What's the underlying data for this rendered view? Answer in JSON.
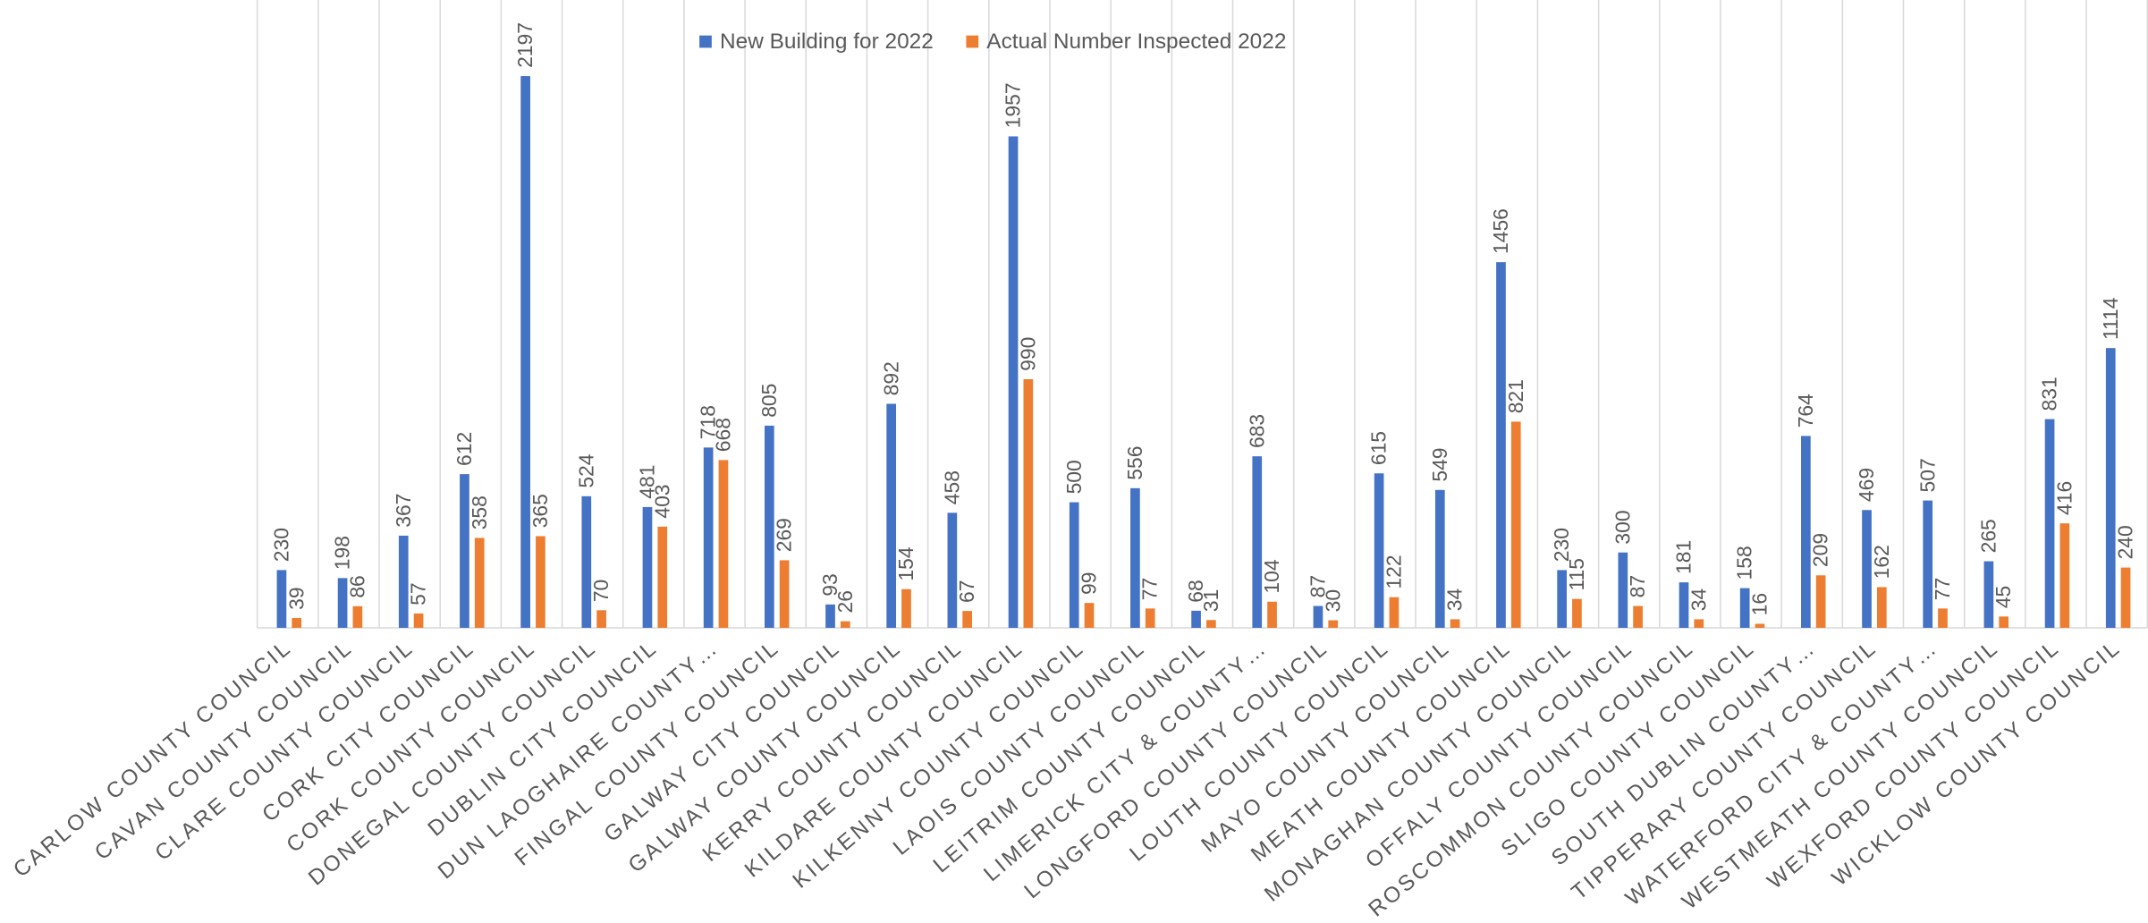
{
  "chart_data": {
    "type": "bar",
    "categories": [
      "CARLOW COUNTY COUNCIL",
      "CAVAN COUNTY COUNCIL",
      "CLARE COUNTY COUNCIL",
      "CORK CITY COUNCIL",
      "CORK COUNTY COUNCIL",
      "DONEGAL COUNTY COUNCIL",
      "DUBLIN CITY COUNCIL",
      "DUN LAOGHAIRE COUNTY…",
      "FINGAL COUNTY COUNCIL",
      "GALWAY CITY COUNCIL",
      "GALWAY COUNTY COUNCIL",
      "KERRY COUNTY COUNCIL",
      "KILDARE COUNTY COUNCIL",
      "KILKENNY COUNTY COUNCIL",
      "LAOIS COUNTY COUNCIL",
      "LEITRIM COUNTY COUNCIL",
      "LIMERICK CITY & COUNTY…",
      "LONGFORD COUNTY COUNCIL",
      "LOUTH COUNTY COUNCIL",
      "MAYO COUNTY COUNCIL",
      "MEATH COUNTY COUNCIL",
      "MONAGHAN COUNTY COUNCIL",
      "OFFALY COUNTY COUNCIL",
      "ROSCOMMON COUNTY COUNCIL",
      "SLIGO COUNTY COUNCIL",
      "SOUTH DUBLIN COUNTY…",
      "TIPPERARY COUNTY COUNCIL",
      "WATERFORD CITY & COUNTY…",
      "WESTMEATH COUNTY COUNCIL",
      "WEXFORD COUNTY COUNCIL",
      "WICKLOW COUNTY COUNCIL"
    ],
    "series": [
      {
        "name": "New Building for 2022",
        "color": "#4472c4",
        "values": [
          230,
          198,
          367,
          612,
          2197,
          524,
          481,
          718,
          805,
          93,
          892,
          458,
          1957,
          500,
          556,
          68,
          683,
          87,
          615,
          549,
          1456,
          230,
          300,
          181,
          158,
          764,
          469,
          507,
          265,
          831,
          1114
        ]
      },
      {
        "name": "Actual Number Inspected 2022",
        "color": "#ed7d31",
        "values": [
          39,
          86,
          57,
          358,
          365,
          70,
          403,
          668,
          269,
          26,
          154,
          67,
          990,
          99,
          77,
          31,
          104,
          30,
          122,
          34,
          821,
          115,
          87,
          34,
          16,
          209,
          162,
          77,
          45,
          416,
          240
        ]
      }
    ],
    "ylim": [
      0,
      2500
    ],
    "legend": "top"
  }
}
